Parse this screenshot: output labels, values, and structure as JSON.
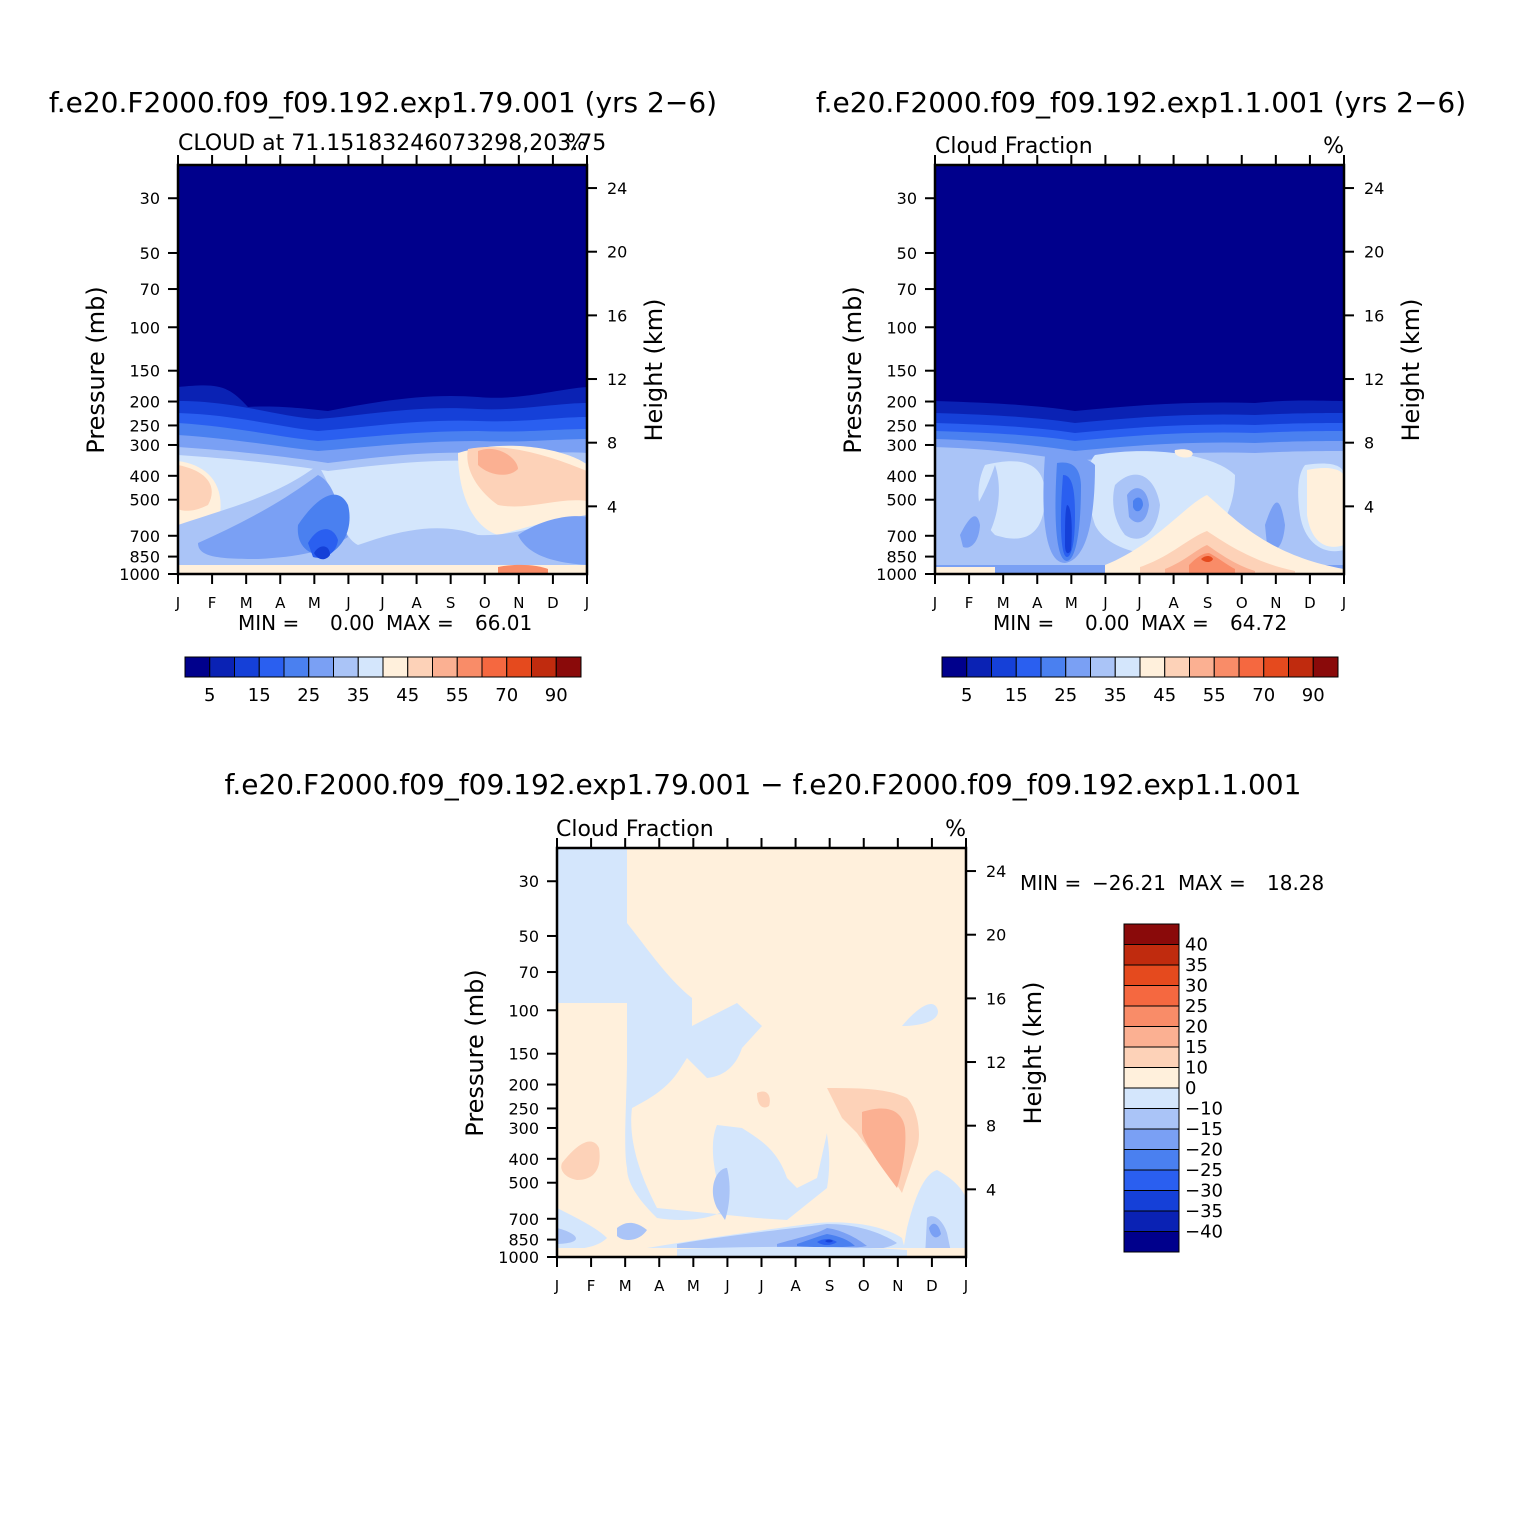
{
  "chart_data": [
    {
      "type": "heatmap",
      "title": "f.e20.F2000.f09_f09.192.exp1.79.001 (yrs 2−6)",
      "subtitle_left": "CLOUD at 71.15183246073298,203.75",
      "subtitle_right": "%",
      "ylabel": "Pressure (mb)",
      "ylabel_right": "Height (km)",
      "x_ticks": [
        "J",
        "F",
        "M",
        "A",
        "M",
        "J",
        "J",
        "A",
        "S",
        "O",
        "N",
        "D",
        "J"
      ],
      "y_ticks": [
        30,
        50,
        70,
        100,
        150,
        200,
        250,
        300,
        400,
        500,
        700,
        850,
        1000
      ],
      "y_ticks_right": [
        24,
        20,
        16,
        12,
        8,
        4
      ],
      "stats": {
        "min_label": "MIN =",
        "min": "0.00",
        "max_label": "MAX =",
        "max": "66.01"
      },
      "colorbar_labels": [
        "5",
        "15",
        "25",
        "35",
        "45",
        "55",
        "70",
        "90"
      ],
      "colorbar_colors": [
        "#00008c",
        "#0a22b4",
        "#1540d8",
        "#2a5ff0",
        "#4a80f0",
        "#7aa0f4",
        "#aac4f7",
        "#d4e6fc",
        "#fff0dc",
        "#fdd2b8",
        "#fbb092",
        "#f98c68",
        "#f56840",
        "#e54a1e",
        "#c02b0e",
        "#8a0a0a"
      ]
    },
    {
      "type": "heatmap",
      "title": "f.e20.F2000.f09_f09.192.exp1.1.001 (yrs 2−6)",
      "subtitle_left": "Cloud Fraction",
      "subtitle_right": "%",
      "ylabel": "Pressure (mb)",
      "ylabel_right": "Height (km)",
      "x_ticks": [
        "J",
        "F",
        "M",
        "A",
        "M",
        "J",
        "J",
        "A",
        "S",
        "O",
        "N",
        "D",
        "J"
      ],
      "y_ticks": [
        30,
        50,
        70,
        100,
        150,
        200,
        250,
        300,
        400,
        500,
        700,
        850,
        1000
      ],
      "y_ticks_right": [
        24,
        20,
        16,
        12,
        8,
        4
      ],
      "stats": {
        "min_label": "MIN =",
        "min": "0.00",
        "max_label": "MAX =",
        "max": "64.72"
      },
      "colorbar_labels": [
        "5",
        "15",
        "25",
        "35",
        "45",
        "55",
        "70",
        "90"
      ],
      "colorbar_colors": [
        "#00008c",
        "#0a22b4",
        "#1540d8",
        "#2a5ff0",
        "#4a80f0",
        "#7aa0f4",
        "#aac4f7",
        "#d4e6fc",
        "#fff0dc",
        "#fdd2b8",
        "#fbb092",
        "#f98c68",
        "#f56840",
        "#e54a1e",
        "#c02b0e",
        "#8a0a0a"
      ]
    },
    {
      "type": "heatmap",
      "title": "f.e20.F2000.f09_f09.192.exp1.79.001 − f.e20.F2000.f09_f09.192.exp1.1.001",
      "subtitle_left": "Cloud Fraction",
      "subtitle_right": "%",
      "ylabel": "Pressure (mb)",
      "ylabel_right": "Height (km)",
      "x_ticks": [
        "J",
        "F",
        "M",
        "A",
        "M",
        "J",
        "J",
        "A",
        "S",
        "O",
        "N",
        "D",
        "J"
      ],
      "y_ticks": [
        30,
        50,
        70,
        100,
        150,
        200,
        250,
        300,
        400,
        500,
        700,
        850,
        1000
      ],
      "y_ticks_right": [
        24,
        20,
        16,
        12,
        8,
        4
      ],
      "stats": {
        "min_label": "MIN =",
        "min": "−26.21",
        "max_label": "MAX =",
        "max": "18.28"
      },
      "colorbar_labels": [
        "40",
        "35",
        "30",
        "25",
        "20",
        "15",
        "10",
        "0",
        "−10",
        "−15",
        "−20",
        "−25",
        "−30",
        "−35",
        "−40"
      ],
      "colorbar_colors": [
        "#8a0a0a",
        "#c02b0e",
        "#e54a1e",
        "#f56840",
        "#f98c68",
        "#fbb092",
        "#fdd2b8",
        "#fff0dc",
        "#d4e6fc",
        "#aac4f7",
        "#7aa0f4",
        "#4a80f0",
        "#2a5ff0",
        "#1540d8",
        "#0a22b4",
        "#00008c"
      ]
    }
  ]
}
